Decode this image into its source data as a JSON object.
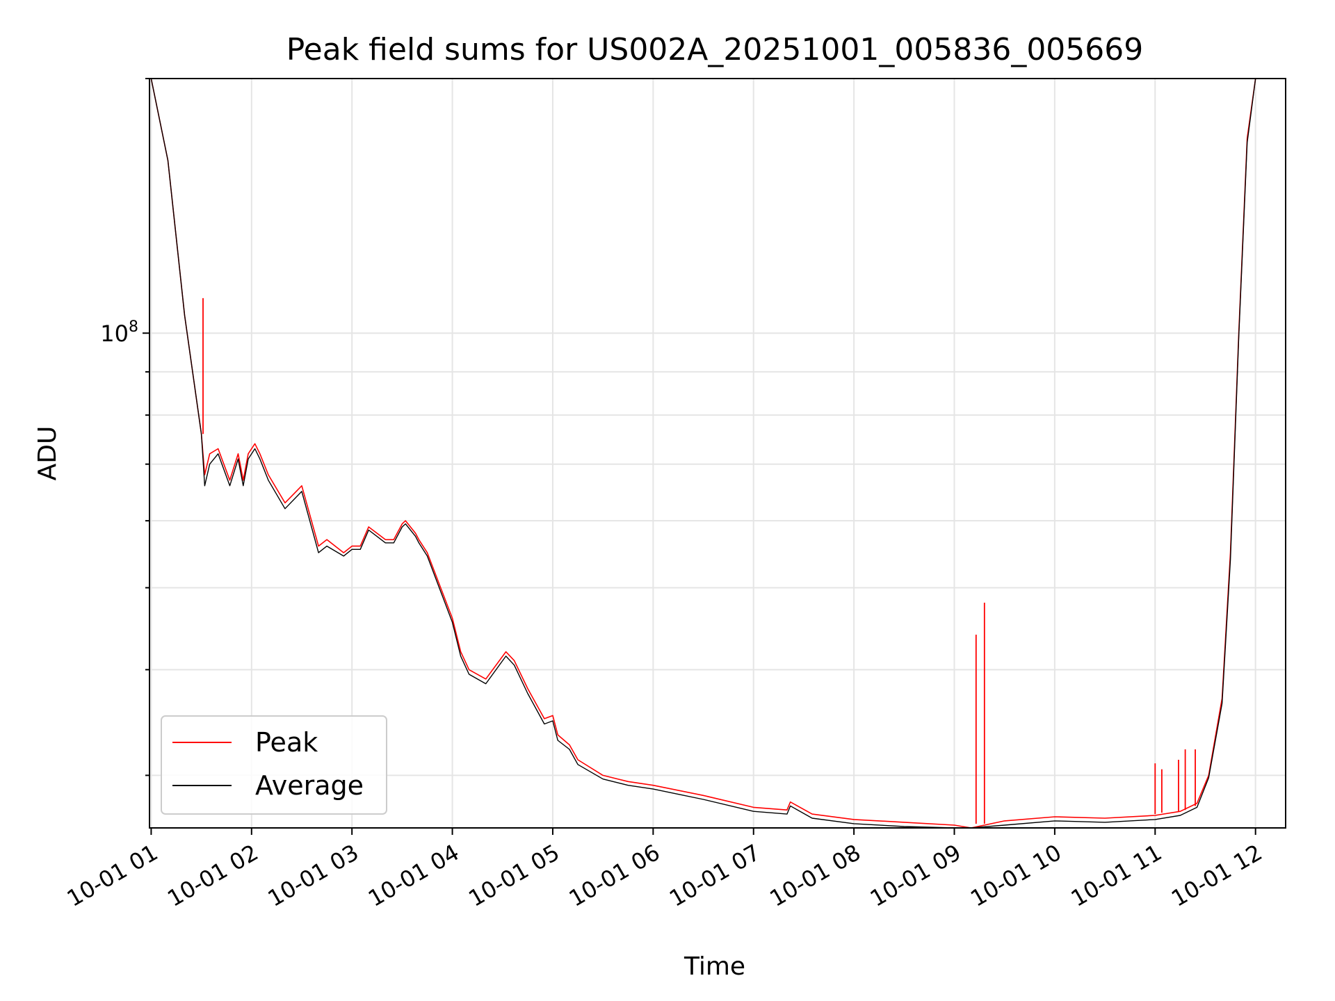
{
  "chart_data": {
    "type": "line",
    "title": "Peak field sums for US002A_20251001_005836_005669",
    "xlabel": "Time",
    "ylabel": "ADU",
    "yscale": "log",
    "ylim": [
      26000000,
      200000000
    ],
    "xlim": [
      "10-01 00:59",
      "10-01 12:18"
    ],
    "grid": true,
    "legend": "lower-left",
    "x_ticks": [
      "10-01 01",
      "10-01 02",
      "10-01 03",
      "10-01 04",
      "10-01 05",
      "10-01 06",
      "10-01 07",
      "10-01 08",
      "10-01 09",
      "10-01 10",
      "10-01 11",
      "10-01 12"
    ],
    "y_ticks": [
      {
        "value": 100000000,
        "base": "10",
        "exponent": "8"
      }
    ],
    "y_minor_ticks": [
      30000000,
      40000000,
      50000000,
      60000000,
      70000000,
      80000000,
      90000000,
      200000000
    ],
    "x": [
      "10-01 01:00",
      "10-01 01:10",
      "10-01 01:20",
      "10-01 01:30",
      "10-01 01:32",
      "10-01 01:35",
      "10-01 01:40",
      "10-01 01:47",
      "10-01 01:52",
      "10-01 01:55",
      "10-01 01:58",
      "10-01 02:02",
      "10-01 02:05",
      "10-01 02:10",
      "10-01 02:20",
      "10-01 02:30",
      "10-01 02:40",
      "10-01 02:45",
      "10-01 02:55",
      "10-01 03:00",
      "10-01 03:05",
      "10-01 03:10",
      "10-01 03:20",
      "10-01 03:25",
      "10-01 03:30",
      "10-01 03:32",
      "10-01 03:38",
      "10-01 03:40",
      "10-01 03:45",
      "10-01 04:00",
      "10-01 04:05",
      "10-01 04:10",
      "10-01 04:20",
      "10-01 04:32",
      "10-01 04:37",
      "10-01 04:45",
      "10-01 04:55",
      "10-01 05:00",
      "10-01 05:03",
      "10-01 05:10",
      "10-01 05:15",
      "10-01 05:30",
      "10-01 05:45",
      "10-01 06:00",
      "10-01 06:30",
      "10-01 07:00",
      "10-01 07:20",
      "10-01 07:22",
      "10-01 07:35",
      "10-01 08:00",
      "10-01 08:30",
      "10-01 09:00",
      "10-01 09:10",
      "10-01 09:30",
      "10-01 10:00",
      "10-01 10:30",
      "10-01 11:00",
      "10-01 11:15",
      "10-01 11:25",
      "10-01 11:32",
      "10-01 11:40",
      "10-01 11:45",
      "10-01 11:50",
      "10-01 11:55",
      "10-01 12:00",
      "10-01 12:05",
      "10-01 12:18"
    ],
    "series": [
      {
        "name": "Peak",
        "color": "#ff0000",
        "values": [
          200000000,
          160000000,
          105000000,
          76000000,
          68000000,
          72000000,
          73000000,
          67000000,
          72000000,
          67000000,
          72000000,
          74000000,
          72000000,
          68000000,
          63000000,
          66000000,
          56000000,
          57000000,
          55000000,
          56000000,
          56000000,
          59000000,
          57000000,
          57000000,
          59500000,
          60000000,
          58000000,
          57000000,
          55000000,
          46000000,
          42000000,
          40000000,
          39000000,
          42000000,
          41000000,
          38000000,
          35000000,
          35300000,
          33500000,
          32600000,
          31300000,
          30000000,
          29500000,
          29200000,
          28400000,
          27500000,
          27300000,
          27900000,
          27000000,
          26600000,
          26400000,
          26200000,
          26000000,
          26500000,
          26800000,
          26700000,
          26900000,
          27200000,
          27800000,
          30000000,
          37000000,
          55000000,
          100000000,
          170000000,
          200000000,
          200000000,
          200000000
        ]
      },
      {
        "name": "Average",
        "color": "#000000",
        "values": [
          200000000,
          160000000,
          105000000,
          76000000,
          66000000,
          70000000,
          72000000,
          66000000,
          71000000,
          66000000,
          71000000,
          73000000,
          71000000,
          67000000,
          62000000,
          65000000,
          55000000,
          56000000,
          54500000,
          55500000,
          55500000,
          58500000,
          56500000,
          56500000,
          59000000,
          59500000,
          57500000,
          56500000,
          54500000,
          45500000,
          41500000,
          39500000,
          38500000,
          41500000,
          40500000,
          37500000,
          34500000,
          34800000,
          33000000,
          32200000,
          30900000,
          29700000,
          29200000,
          28900000,
          28100000,
          27200000,
          27000000,
          27600000,
          26700000,
          26300000,
          26100000,
          25900000,
          25800000,
          26200000,
          26500000,
          26400000,
          26600000,
          26900000,
          27500000,
          29800000,
          36500000,
          54000000,
          99000000,
          168000000,
          200000000,
          200000000,
          200000000
        ]
      }
    ],
    "spikes": [
      {
        "series": "Peak",
        "x": "10-01 01:31",
        "from": 76000000,
        "to": 110000000
      },
      {
        "series": "Peak",
        "x": "10-01 09:13",
        "from": 26300000,
        "to": 44000000
      },
      {
        "series": "Peak",
        "x": "10-01 09:18",
        "from": 26300000,
        "to": 48000000
      },
      {
        "series": "Peak",
        "x": "10-01 11:00",
        "from": 27000000,
        "to": 31000000
      },
      {
        "series": "Peak",
        "x": "10-01 11:04",
        "from": 27100000,
        "to": 30500000
      },
      {
        "series": "Peak",
        "x": "10-01 11:14",
        "from": 27200000,
        "to": 31300000
      },
      {
        "series": "Peak",
        "x": "10-01 11:18",
        "from": 27300000,
        "to": 32200000
      },
      {
        "series": "Peak",
        "x": "10-01 11:24",
        "from": 27600000,
        "to": 32200000
      }
    ]
  }
}
